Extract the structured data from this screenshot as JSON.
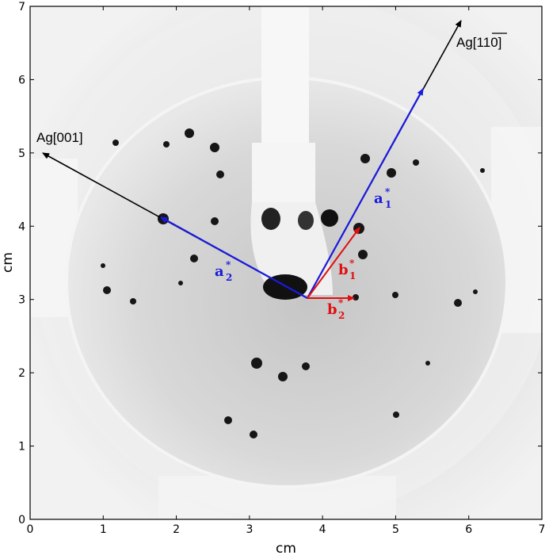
{
  "axes": {
    "xlabel": "cm",
    "ylabel": "cm",
    "xlim": [
      0,
      7
    ],
    "ylim": [
      0,
      7
    ],
    "x_ticks": [
      "0",
      "1",
      "2",
      "3",
      "4",
      "5",
      "6",
      "7"
    ],
    "y_ticks": [
      "0",
      "1",
      "2",
      "3",
      "4",
      "5",
      "6",
      "7"
    ]
  },
  "directions": {
    "ag001": {
      "prefix": "Ag[",
      "digits": "001",
      "suffix": "]"
    },
    "ag110": {
      "prefix": "Ag[",
      "digits": "1",
      "bar_digits": "1",
      "last": "0",
      "suffix": "]"
    }
  },
  "vectors": {
    "a1": {
      "letter": "a",
      "sub": "1",
      "sup": "*",
      "color": "#1a1adc"
    },
    "a2": {
      "letter": "a",
      "sub": "2",
      "sup": "*",
      "color": "#1a1adc"
    },
    "b1": {
      "letter": "b",
      "sub": "1",
      "sup": "*",
      "color": "#e01010"
    },
    "b2": {
      "letter": "b",
      "sub": "2",
      "sup": "*",
      "color": "#e01010"
    }
  },
  "colors": {
    "blue": "#1a1adc",
    "red": "#e01010",
    "black": "#000000"
  }
}
